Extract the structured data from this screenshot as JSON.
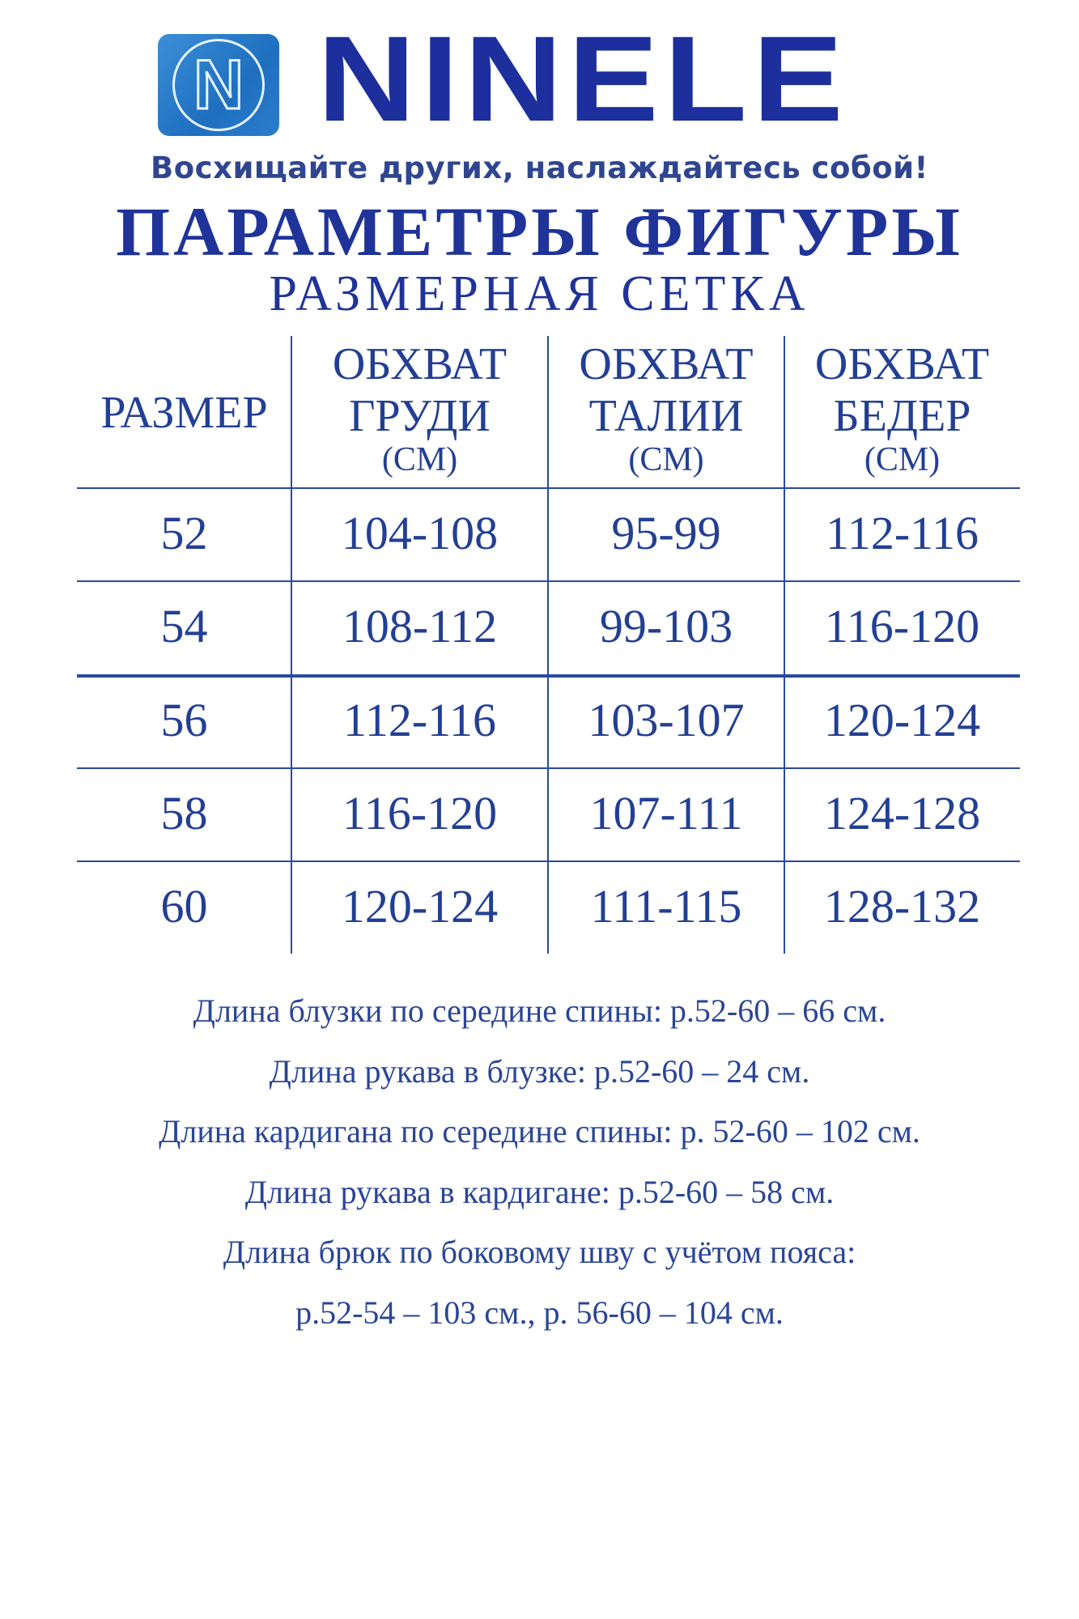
{
  "brand": {
    "name": "NINELE",
    "logo_letter": "N",
    "tagline": "Восхищайте других, наслаждайтесь собой!"
  },
  "title": "ПАРАМЕТРЫ ФИГУРЫ",
  "subtitle": "РАЗМЕРНАЯ СЕТКА",
  "colors": {
    "primary": "#1f3399",
    "logo_blue": "#2b7dcc"
  },
  "table": {
    "headers": [
      {
        "line1": "РАЗМЕР",
        "line2": "",
        "unit": ""
      },
      {
        "line1": "ОБХВАТ",
        "line2": "ГРУДИ",
        "unit": "(СМ)"
      },
      {
        "line1": "ОБХВАТ",
        "line2": "ТАЛИИ",
        "unit": "(СМ)"
      },
      {
        "line1": "ОБХВАТ",
        "line2": "БЕДЕР",
        "unit": "(СМ)"
      }
    ],
    "rows": [
      [
        "52",
        "104-108",
        "95-99",
        "112-116"
      ],
      [
        "54",
        "108-112",
        "99-103",
        "116-120"
      ],
      [
        "56",
        "112-116",
        "103-107",
        "120-124"
      ],
      [
        "58",
        "116-120",
        "107-111",
        "124-128"
      ],
      [
        "60",
        "120-124",
        "111-115",
        "128-132"
      ]
    ]
  },
  "notes": [
    "Длина блузки по середине спины: р.52-60 – 66 см.",
    "Длина рукава в блузке: р.52-60 – 24 см.",
    "Длина кардигана по середине спины: р. 52-60 – 102 см.",
    "Длина рукава в кардигане: р.52-60 – 58 см.",
    "Длина брюк по боковому шву с учётом пояса:",
    "р.52-54 – 103 см., р. 56-60 – 104 см."
  ]
}
